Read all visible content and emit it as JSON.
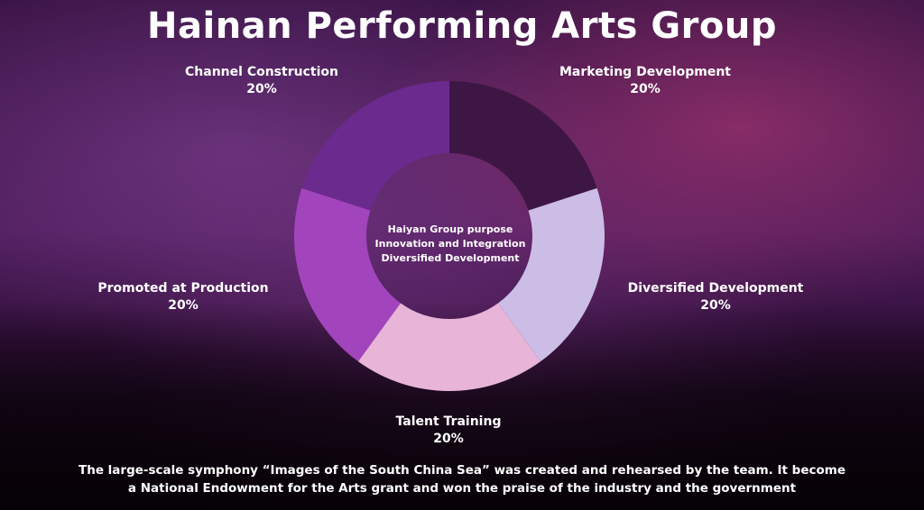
{
  "title": "Hainan Performing Arts Group",
  "chart_data": {
    "type": "pie",
    "categories": [
      "Marketing Development",
      "Diversified Development",
      "Talent Training",
      "Promoted at Production",
      "Channel Construction"
    ],
    "values": [
      20,
      20,
      20,
      20,
      20
    ],
    "value_labels": [
      "20%",
      "20%",
      "20%",
      "20%",
      "20%"
    ],
    "colors": [
      "#3e1644",
      "#cbbde6",
      "#e8b4d8",
      "#a245bd",
      "#6b2a8e"
    ],
    "donut": true,
    "legend": "none",
    "center_text": [
      "Haiyan Group purpose",
      "Innovation and Integration",
      "Diversified Development"
    ]
  },
  "footnote": {
    "line1": "The large-scale symphony “Images of the South China Sea” was created and rehearsed by the team. It become",
    "line2": "a National Endowment for the Arts grant and won the praise of the industry and the government"
  }
}
